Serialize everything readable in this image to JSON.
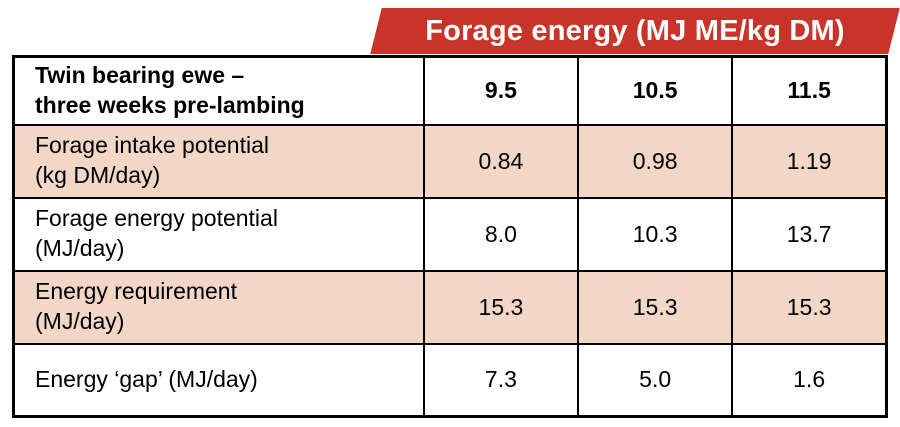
{
  "banner": {
    "label": "Forage energy (MJ ME/kg DM)",
    "bg_color": "#c9342a",
    "text_color": "#ffffff"
  },
  "table": {
    "header": {
      "row_label": "Twin bearing ewe –\nthree weeks pre-lambing",
      "columns": [
        "9.5",
        "10.5",
        "11.5"
      ]
    },
    "rows": [
      {
        "label": "Forage intake potential\n(kg DM/day)",
        "values": [
          "0.84",
          "0.98",
          "1.19"
        ],
        "shaded": true
      },
      {
        "label": "Forage energy potential\n(MJ/day)",
        "values": [
          "8.0",
          "10.3",
          "13.7"
        ],
        "shaded": false
      },
      {
        "label": "Energy requirement\n(MJ/day)",
        "values": [
          "15.3",
          "15.3",
          "15.3"
        ],
        "shaded": true
      },
      {
        "label": "Energy ‘gap’ (MJ/day)",
        "values": [
          "7.3",
          "5.0",
          "1.6"
        ],
        "shaded": false
      }
    ],
    "shade_color": "#f2d7c6"
  },
  "chart_data": {
    "type": "table",
    "title": "Forage energy (MJ ME/kg DM)",
    "columns": [
      "Twin bearing ewe – three weeks pre-lambing",
      "9.5",
      "10.5",
      "11.5"
    ],
    "rows": [
      [
        "Forage intake potential (kg DM/day)",
        0.84,
        0.98,
        1.19
      ],
      [
        "Forage energy potential (MJ/day)",
        8.0,
        10.3,
        13.7
      ],
      [
        "Energy requirement (MJ/day)",
        15.3,
        15.3,
        15.3
      ],
      [
        "Energy ‘gap’ (MJ/day)",
        7.3,
        5.0,
        1.6
      ]
    ],
    "layout_hints": {
      "shaded_row_indexes": [
        0,
        2
      ],
      "shade_color": "#f2d7c6",
      "header_banner_color": "#c9342a",
      "border_color": "#000000"
    }
  }
}
